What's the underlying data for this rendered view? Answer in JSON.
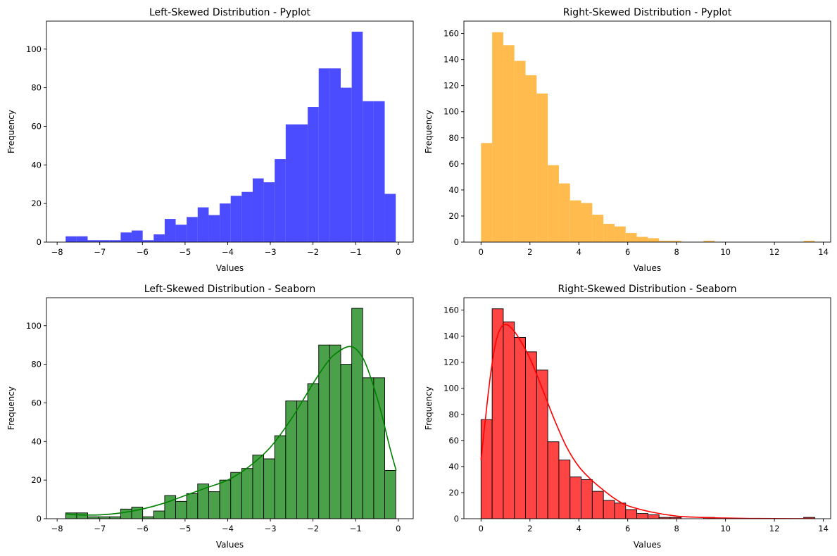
{
  "chart_data": [
    {
      "type": "bar",
      "title": "Left-Skewed Distribution - Pyplot",
      "xlabel": "Values",
      "ylabel": "Frequency",
      "color": "#4b4bff",
      "edge": false,
      "kde": false,
      "xlim": [
        -8.25,
        0.35
      ],
      "ylim": [
        0,
        114.5
      ],
      "xticks": [
        -8,
        -7,
        -6,
        -5,
        -4,
        -3,
        -2,
        -1,
        0
      ],
      "yticks": [
        0,
        20,
        40,
        60,
        80,
        100
      ],
      "bin_start": -7.8,
      "bin_width": 0.258,
      "values": [
        3,
        3,
        1,
        1,
        1,
        5,
        6,
        1,
        4,
        12,
        9,
        13,
        18,
        14,
        20,
        24,
        26,
        33,
        31,
        43,
        61,
        61,
        70,
        90,
        90,
        80,
        109,
        73,
        73,
        25
      ]
    },
    {
      "type": "bar",
      "title": "Right-Skewed Distribution - Pyplot",
      "xlabel": "Values",
      "ylabel": "Frequency",
      "color": "#ffbb4d",
      "edge": false,
      "kde": false,
      "xlim": [
        -0.7,
        14.3
      ],
      "ylim": [
        0,
        169.5
      ],
      "xticks": [
        0,
        2,
        4,
        6,
        8,
        10,
        12,
        14
      ],
      "yticks": [
        0,
        20,
        40,
        60,
        80,
        100,
        120,
        140,
        160
      ],
      "bin_start": 0,
      "bin_width": 0.455,
      "values": [
        76,
        161,
        151,
        139,
        128,
        114,
        59,
        45,
        32,
        30,
        21,
        14,
        12,
        7,
        4,
        3,
        1,
        1,
        0,
        0,
        1,
        0,
        0,
        0,
        0,
        0,
        0,
        0,
        0,
        1
      ]
    },
    {
      "type": "bar",
      "title": "Left-Skewed Distribution - Seaborn",
      "xlabel": "Values",
      "ylabel": "Frequency",
      "color": "#4aa14a",
      "kde_color": "#008000",
      "edge": true,
      "kde": true,
      "xlim": [
        -8.25,
        0.35
      ],
      "ylim": [
        0,
        114.5
      ],
      "xticks": [
        -8,
        -7,
        -6,
        -5,
        -4,
        -3,
        -2,
        -1,
        0
      ],
      "yticks": [
        0,
        20,
        40,
        60,
        80,
        100
      ],
      "bin_start": -7.8,
      "bin_width": 0.258,
      "values": [
        3,
        3,
        1,
        1,
        1,
        5,
        6,
        1,
        4,
        12,
        9,
        13,
        18,
        14,
        20,
        24,
        26,
        33,
        31,
        43,
        61,
        61,
        70,
        90,
        90,
        80,
        109,
        73,
        73,
        25
      ],
      "kde_x": [
        -7.8,
        -7.5,
        -7.0,
        -6.5,
        -6.0,
        -5.5,
        -5.0,
        -4.5,
        -4.0,
        -3.5,
        -3.0,
        -2.5,
        -2.0,
        -1.7,
        -1.5,
        -1.2,
        -1.0,
        -0.8,
        -0.6,
        -0.4,
        -0.2,
        -0.05
      ],
      "kde_y": [
        2.5,
        2,
        2,
        3,
        5,
        8,
        12,
        16,
        20,
        27,
        37,
        52,
        70,
        80,
        85,
        89,
        88,
        82,
        70,
        55,
        37,
        25
      ]
    },
    {
      "type": "bar",
      "title": "Right-Skewed Distribution - Seaborn",
      "xlabel": "Values",
      "ylabel": "Frequency",
      "color": "#ff4444",
      "kde_color": "#ff0000",
      "edge": true,
      "kde": true,
      "xlim": [
        -0.7,
        14.3
      ],
      "ylim": [
        0,
        169.5
      ],
      "xticks": [
        0,
        2,
        4,
        6,
        8,
        10,
        12,
        14
      ],
      "yticks": [
        0,
        20,
        40,
        60,
        80,
        100,
        120,
        140,
        160
      ],
      "bin_start": 0,
      "bin_width": 0.455,
      "values": [
        76,
        161,
        151,
        139,
        128,
        114,
        59,
        45,
        32,
        30,
        21,
        14,
        12,
        7,
        4,
        3,
        1,
        1,
        0,
        0,
        1,
        0,
        0,
        0,
        0,
        0,
        0,
        0,
        0,
        1
      ],
      "kde_x": [
        0,
        0.2,
        0.4,
        0.6,
        0.8,
        1.0,
        1.2,
        1.5,
        2.0,
        2.5,
        3.0,
        3.5,
        4.0,
        4.5,
        5.0,
        5.5,
        6.0,
        7.0,
        8.0,
        9.0,
        10.0,
        11.0,
        12.0,
        13.6
      ],
      "kde_y": [
        45,
        80,
        112,
        135,
        146,
        149,
        147,
        140,
        123,
        100,
        76,
        55,
        40,
        30,
        22,
        15,
        10,
        5,
        2,
        1,
        0.5,
        0.2,
        0.1,
        0
      ]
    }
  ]
}
